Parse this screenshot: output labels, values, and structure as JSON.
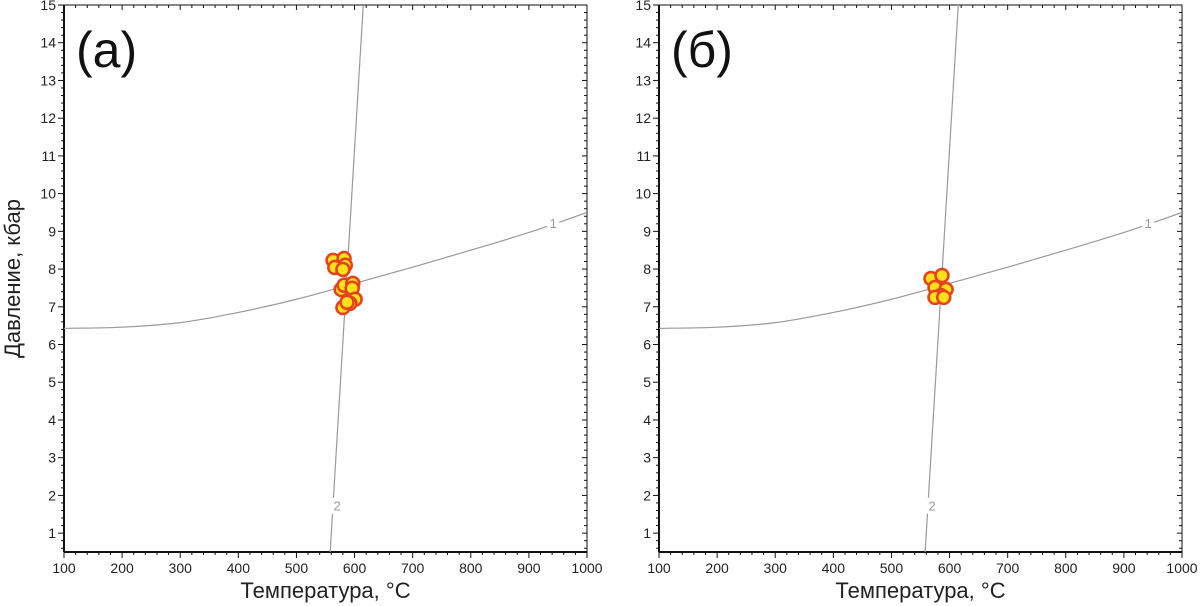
{
  "chart_data": [
    {
      "type": "scatter",
      "panel_label": "(а)",
      "xlabel": "Температура, °C",
      "ylabel": "Давление, кбар",
      "xlim": [
        100,
        1000
      ],
      "ylim": [
        0.5,
        15
      ],
      "xticks": [
        100,
        200,
        300,
        400,
        500,
        600,
        700,
        800,
        900,
        1000
      ],
      "yticks": [
        1,
        2,
        3,
        4,
        5,
        6,
        7,
        8,
        9,
        10,
        11,
        12,
        13,
        14,
        15
      ],
      "grid": false,
      "curves": [
        {
          "name": "1",
          "x": [
            100,
            200,
            300,
            400,
            500,
            600,
            700,
            800,
            900,
            1000
          ],
          "y": [
            6.43,
            6.46,
            6.58,
            6.85,
            7.2,
            7.62,
            8.05,
            8.5,
            8.97,
            9.5
          ],
          "label_at": [
            942,
            9.2
          ]
        },
        {
          "name": "2",
          "x": [
            558,
            615
          ],
          "y": [
            0.5,
            15
          ],
          "label_at": [
            570,
            1.7
          ]
        }
      ],
      "points": {
        "x": [
          563,
          582,
          584,
          566,
          580,
          577,
          582,
          597,
          596,
          601,
          592,
          580,
          587
        ],
        "y": [
          8.23,
          8.28,
          8.1,
          8.04,
          7.99,
          7.46,
          7.57,
          7.62,
          7.49,
          7.2,
          7.09,
          6.98,
          7.12
        ]
      }
    },
    {
      "type": "scatter",
      "panel_label": "(б)",
      "xlabel": "Температура, °C",
      "ylabel": "",
      "xlim": [
        100,
        1000
      ],
      "ylim": [
        0.5,
        15
      ],
      "xticks": [
        100,
        200,
        300,
        400,
        500,
        600,
        700,
        800,
        900,
        1000
      ],
      "yticks": [
        1,
        2,
        3,
        4,
        5,
        6,
        7,
        8,
        9,
        10,
        11,
        12,
        13,
        14,
        15
      ],
      "grid": false,
      "curves": [
        {
          "name": "1",
          "x": [
            100,
            200,
            300,
            400,
            500,
            600,
            700,
            800,
            900,
            1000
          ],
          "y": [
            6.43,
            6.46,
            6.58,
            6.85,
            7.2,
            7.62,
            8.05,
            8.5,
            8.97,
            9.5
          ],
          "label_at": [
            942,
            9.2
          ]
        },
        {
          "name": "2",
          "x": [
            558,
            615
          ],
          "y": [
            0.5,
            15
          ],
          "label_at": [
            570,
            1.7
          ]
        }
      ],
      "points": {
        "x": [
          568,
          587,
          575,
          594,
          585,
          575,
          590
        ],
        "y": [
          7.75,
          7.83,
          7.51,
          7.46,
          7.3,
          7.25,
          7.25
        ]
      }
    }
  ],
  "colors": {
    "point_fill": "#ffe11a",
    "point_stroke": "#e8401c",
    "curve": "#999999",
    "axis": "#111111"
  }
}
